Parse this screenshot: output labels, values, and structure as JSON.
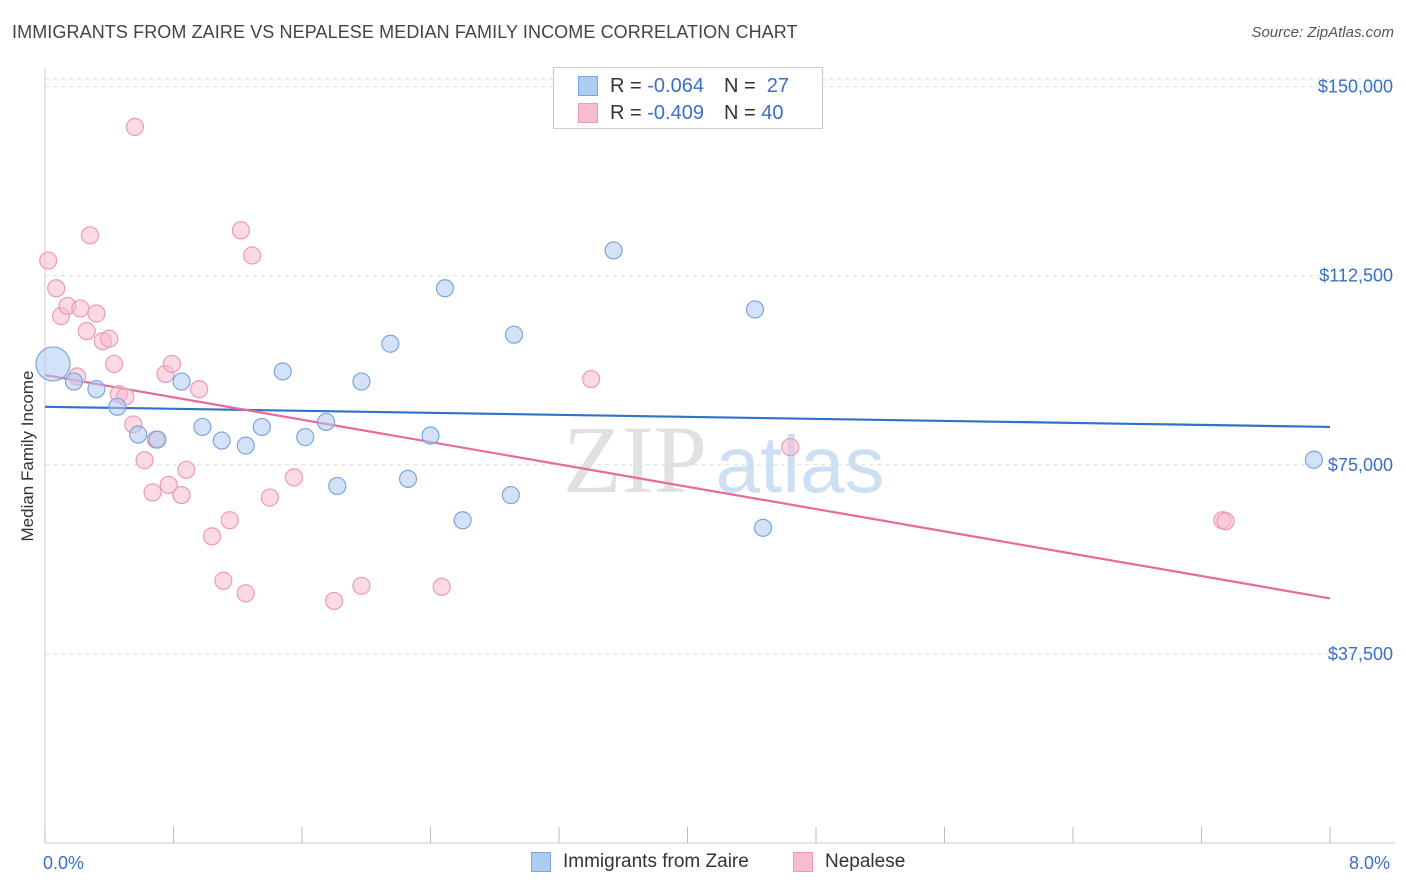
{
  "header": {
    "title": "IMMIGRANTS FROM ZAIRE VS NEPALESE MEDIAN FAMILY INCOME CORRELATION CHART",
    "source": "Source: ZipAtlas.com"
  },
  "legend": {
    "rows": [
      {
        "r_label": "R =",
        "r_value": "-0.064",
        "n_label": "N =",
        "n_value": "27"
      },
      {
        "r_label": "R =",
        "r_value": "-0.409",
        "n_label": "N =",
        "n_value": "40"
      }
    ]
  },
  "bottom_legend": [
    {
      "label": "Immigrants from Zaire"
    },
    {
      "label": "Nepalese"
    }
  ],
  "watermark": {
    "zip": "ZIP",
    "atlas": "atlas"
  },
  "colors": {
    "blue_fill": "#aecbf0",
    "blue_stroke": "#7aa6dc",
    "blue_line": "#2f73c9",
    "pink_fill": "#f7bcd0",
    "pink_stroke": "#eb9ab6",
    "pink_line": "#e8699a",
    "axis_text": "#3a6fc4",
    "grid": "#dddddd"
  },
  "chart_data": {
    "type": "scatter",
    "title": "IMMIGRANTS FROM ZAIRE VS NEPALESE MEDIAN FAMILY INCOME CORRELATION CHART",
    "xlabel": "",
    "ylabel": "Median Family Income",
    "xlim": [
      0.0,
      8.0
    ],
    "ylim": [
      0,
      155000
    ],
    "x_tick_labels": [
      "0.0%",
      "8.0%"
    ],
    "y_ticks": [
      37500,
      75000,
      112500,
      150000
    ],
    "y_tick_labels": [
      "$37,500",
      "$75,000",
      "$112,500",
      "$150,000"
    ],
    "series": [
      {
        "name": "Immigrants from Zaire",
        "r": -0.064,
        "n": 27,
        "trend": {
          "x0": 0.0,
          "y0": 86500,
          "x1": 8.0,
          "y1": 82500
        },
        "points": [
          {
            "x": 0.05,
            "y": 95000,
            "size": "large"
          },
          {
            "x": 0.18,
            "y": 91500
          },
          {
            "x": 0.32,
            "y": 90000
          },
          {
            "x": 0.45,
            "y": 86500
          },
          {
            "x": 0.58,
            "y": 81000
          },
          {
            "x": 0.7,
            "y": 80000
          },
          {
            "x": 0.85,
            "y": 91500
          },
          {
            "x": 0.98,
            "y": 82500
          },
          {
            "x": 1.1,
            "y": 79800
          },
          {
            "x": 1.25,
            "y": 78800
          },
          {
            "x": 1.35,
            "y": 82500
          },
          {
            "x": 1.48,
            "y": 93500
          },
          {
            "x": 1.62,
            "y": 80500
          },
          {
            "x": 1.75,
            "y": 83500
          },
          {
            "x": 1.82,
            "y": 70800
          },
          {
            "x": 1.97,
            "y": 91500
          },
          {
            "x": 2.15,
            "y": 99000
          },
          {
            "x": 2.26,
            "y": 72200
          },
          {
            "x": 2.4,
            "y": 80800
          },
          {
            "x": 2.49,
            "y": 110000
          },
          {
            "x": 2.6,
            "y": 64000
          },
          {
            "x": 2.9,
            "y": 69000
          },
          {
            "x": 2.92,
            "y": 100800
          },
          {
            "x": 3.54,
            "y": 117500
          },
          {
            "x": 4.42,
            "y": 105800
          },
          {
            "x": 4.47,
            "y": 62500
          },
          {
            "x": 7.9,
            "y": 76000
          }
        ]
      },
      {
        "name": "Nepalese",
        "r": -0.409,
        "n": 40,
        "trend": {
          "x0": 0.0,
          "y0": 92800,
          "x1": 8.0,
          "y1": 48500
        },
        "points": [
          {
            "x": 0.02,
            "y": 115500
          },
          {
            "x": 0.07,
            "y": 110000
          },
          {
            "x": 0.1,
            "y": 104500
          },
          {
            "x": 0.14,
            "y": 106500
          },
          {
            "x": 0.2,
            "y": 92500
          },
          {
            "x": 0.22,
            "y": 106000
          },
          {
            "x": 0.26,
            "y": 101500
          },
          {
            "x": 0.28,
            "y": 120500
          },
          {
            "x": 0.32,
            "y": 105000
          },
          {
            "x": 0.36,
            "y": 99500
          },
          {
            "x": 0.4,
            "y": 100000
          },
          {
            "x": 0.43,
            "y": 95000
          },
          {
            "x": 0.46,
            "y": 89000
          },
          {
            "x": 0.5,
            "y": 88500
          },
          {
            "x": 0.55,
            "y": 83000
          },
          {
            "x": 0.56,
            "y": 142000
          },
          {
            "x": 0.62,
            "y": 75900
          },
          {
            "x": 0.67,
            "y": 69500
          },
          {
            "x": 0.69,
            "y": 80000
          },
          {
            "x": 0.75,
            "y": 93000
          },
          {
            "x": 0.77,
            "y": 71000
          },
          {
            "x": 0.79,
            "y": 95000
          },
          {
            "x": 0.85,
            "y": 69000
          },
          {
            "x": 0.88,
            "y": 74000
          },
          {
            "x": 0.96,
            "y": 90000
          },
          {
            "x": 1.04,
            "y": 60800
          },
          {
            "x": 1.11,
            "y": 52000
          },
          {
            "x": 1.15,
            "y": 64000
          },
          {
            "x": 1.22,
            "y": 121500
          },
          {
            "x": 1.25,
            "y": 49500
          },
          {
            "x": 1.29,
            "y": 116500
          },
          {
            "x": 1.4,
            "y": 68500
          },
          {
            "x": 1.55,
            "y": 72500
          },
          {
            "x": 1.8,
            "y": 48000
          },
          {
            "x": 1.97,
            "y": 51000
          },
          {
            "x": 2.47,
            "y": 50800
          },
          {
            "x": 3.4,
            "y": 92000
          },
          {
            "x": 4.64,
            "y": 78500
          },
          {
            "x": 7.33,
            "y": 64000
          },
          {
            "x": 7.35,
            "y": 63800
          }
        ]
      }
    ]
  }
}
